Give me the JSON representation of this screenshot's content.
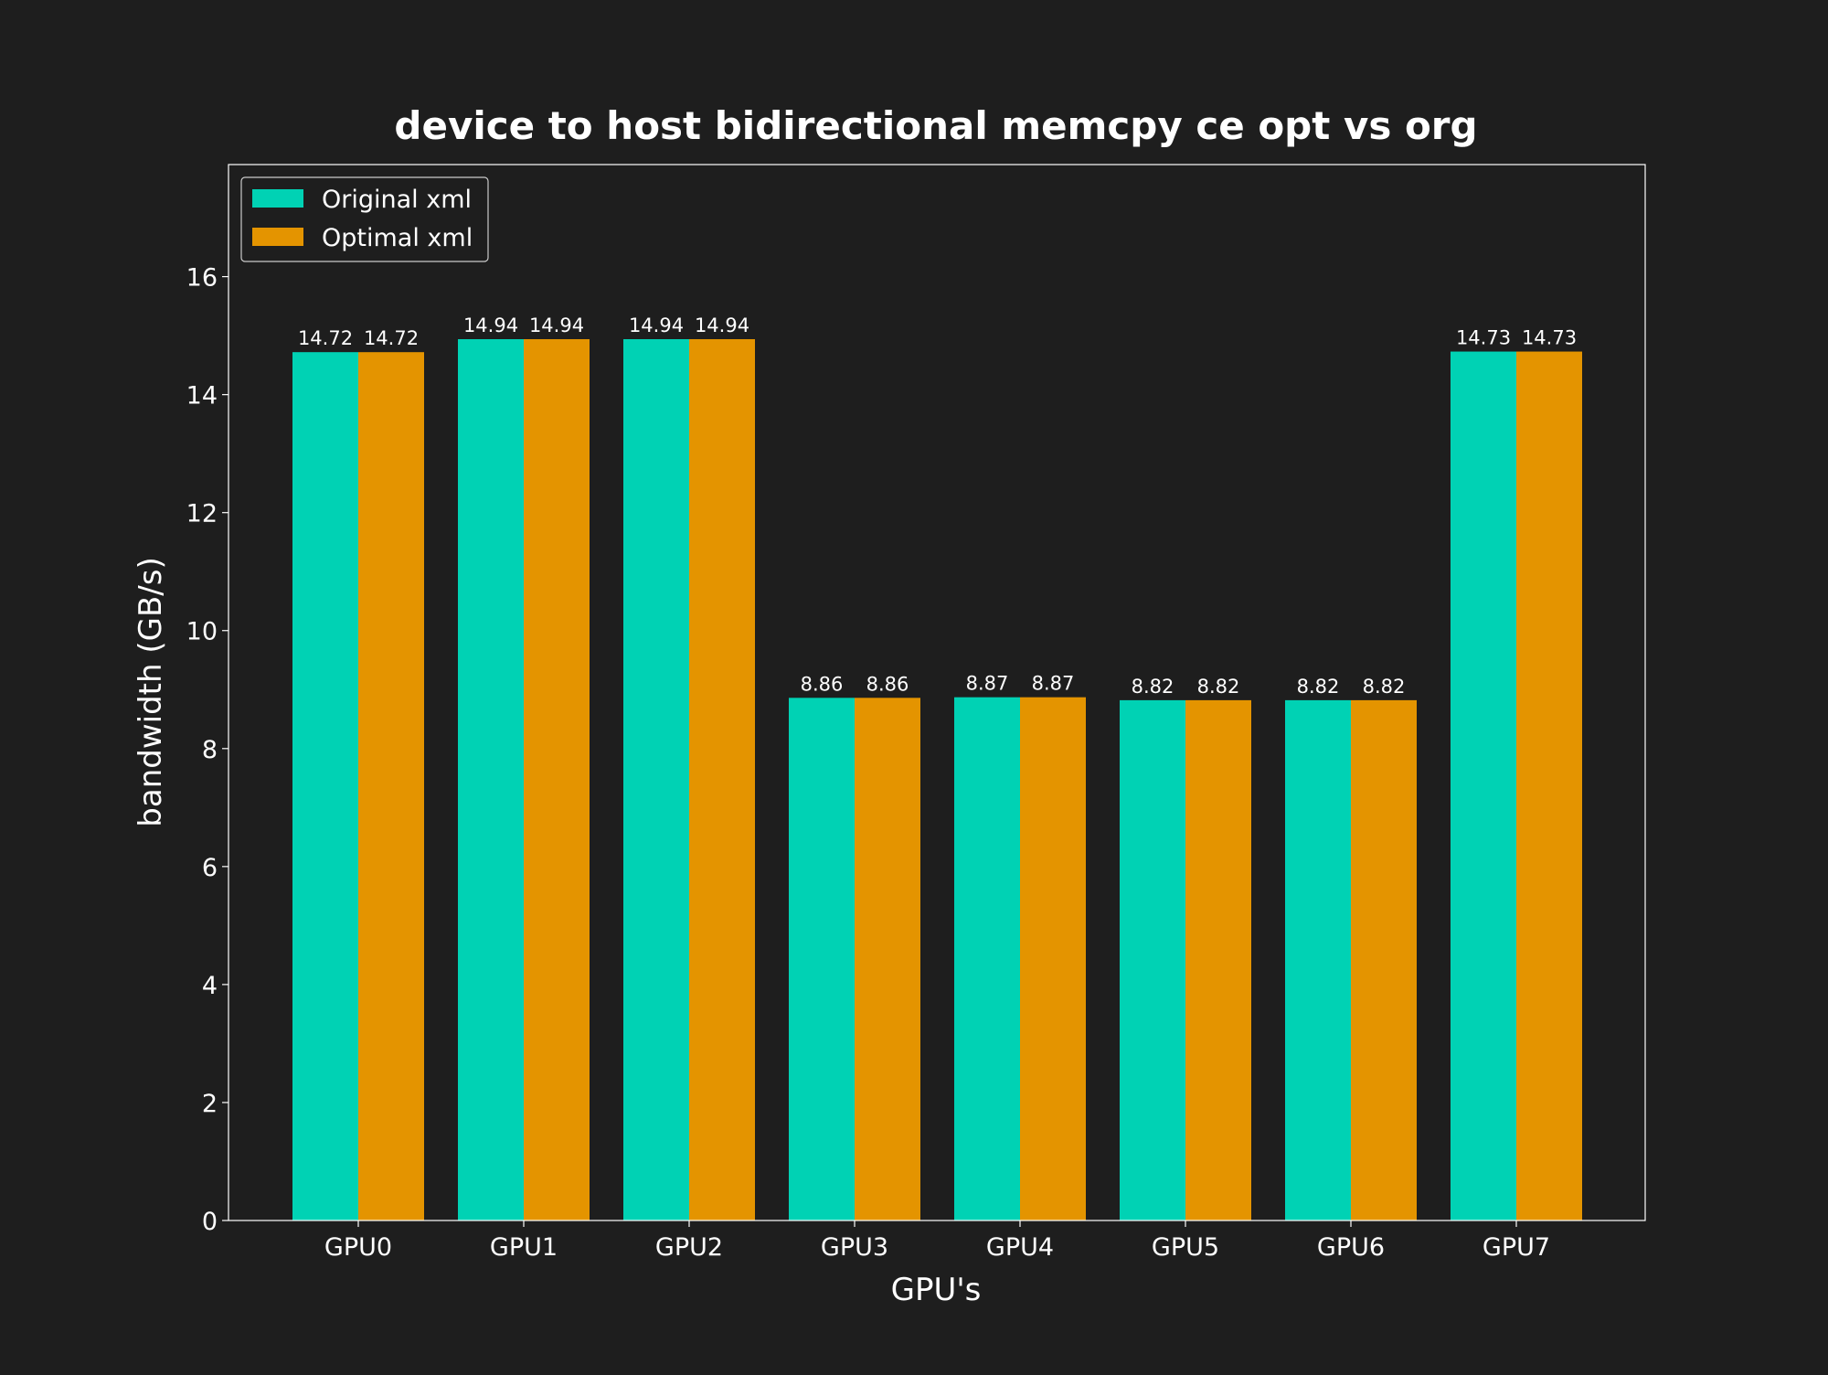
{
  "colors": {
    "background": "#1e1e1e",
    "foreground": "#ffffff",
    "original": "#00d2b4",
    "optimal": "#e49400"
  },
  "chart_data": {
    "type": "bar",
    "title": "device to host bidirectional memcpy ce opt vs org",
    "xlabel": "GPU's",
    "ylabel": "bandwidth (GB/s)",
    "categories": [
      "GPU0",
      "GPU1",
      "GPU2",
      "GPU3",
      "GPU4",
      "GPU5",
      "GPU6",
      "GPU7"
    ],
    "series": [
      {
        "name": "Original xml",
        "values": [
          14.72,
          14.94,
          14.94,
          8.86,
          8.87,
          8.82,
          8.82,
          14.73
        ],
        "labels": [
          "14.72",
          "14.94",
          "14.94",
          "8.86",
          "8.87",
          "8.82",
          "8.82",
          "14.73"
        ]
      },
      {
        "name": "Optimal xml",
        "values": [
          14.72,
          14.94,
          14.94,
          8.86,
          8.87,
          8.82,
          8.82,
          14.73
        ],
        "labels": [
          "14.72",
          "14.94",
          "14.94",
          "8.86",
          "8.87",
          "8.82",
          "8.82",
          "14.73"
        ]
      }
    ],
    "ylim": [
      0,
      17.9
    ],
    "yticks": [
      0,
      2,
      4,
      6,
      8,
      10,
      12,
      14,
      16
    ],
    "ytick_labels": [
      "0",
      "2",
      "4",
      "6",
      "8",
      "10",
      "12",
      "14",
      "16"
    ],
    "grid": false,
    "legend": "top-left"
  }
}
